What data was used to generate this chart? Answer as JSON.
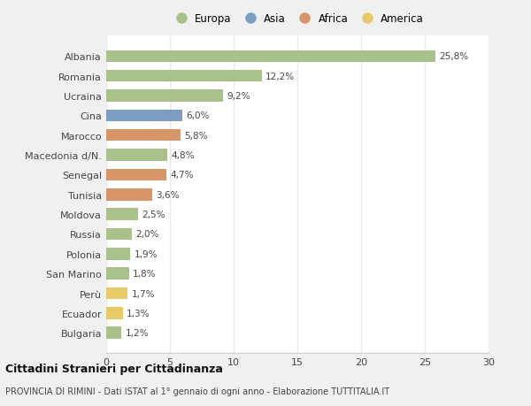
{
  "countries": [
    "Albania",
    "Romania",
    "Ucraina",
    "Cina",
    "Marocco",
    "Macedonia d/N.",
    "Senegal",
    "Tunisia",
    "Moldova",
    "Russia",
    "Polonia",
    "San Marino",
    "Perù",
    "Ecuador",
    "Bulgaria"
  ],
  "values": [
    25.8,
    12.2,
    9.2,
    6.0,
    5.8,
    4.8,
    4.7,
    3.6,
    2.5,
    2.0,
    1.9,
    1.8,
    1.7,
    1.3,
    1.2
  ],
  "labels": [
    "25,8%",
    "12,2%",
    "9,2%",
    "6,0%",
    "5,8%",
    "4,8%",
    "4,7%",
    "3,6%",
    "2,5%",
    "2,0%",
    "1,9%",
    "1,8%",
    "1,7%",
    "1,3%",
    "1,2%"
  ],
  "continents": [
    "Europa",
    "Europa",
    "Europa",
    "Asia",
    "Africa",
    "Europa",
    "Africa",
    "Africa",
    "Europa",
    "Europa",
    "Europa",
    "Europa",
    "America",
    "America",
    "Europa"
  ],
  "continent_colors": {
    "Europa": "#a8c08a",
    "Asia": "#7b9ec0",
    "Africa": "#d9956a",
    "America": "#e8c96a"
  },
  "legend_order": [
    "Europa",
    "Asia",
    "Africa",
    "America"
  ],
  "xlim": [
    0,
    30
  ],
  "xticks": [
    0,
    5,
    10,
    15,
    20,
    25,
    30
  ],
  "title": "Cittadini Stranieri per Cittadinanza",
  "subtitle": "PROVINCIA DI RIMINI - Dati ISTAT al 1° gennaio di ogni anno - Elaborazione TUTTITALIA.IT",
  "bg_color": "#f0f0f0",
  "plot_bg_color": "#ffffff",
  "grid_color": "#e8e8e8",
  "bar_height": 0.6
}
